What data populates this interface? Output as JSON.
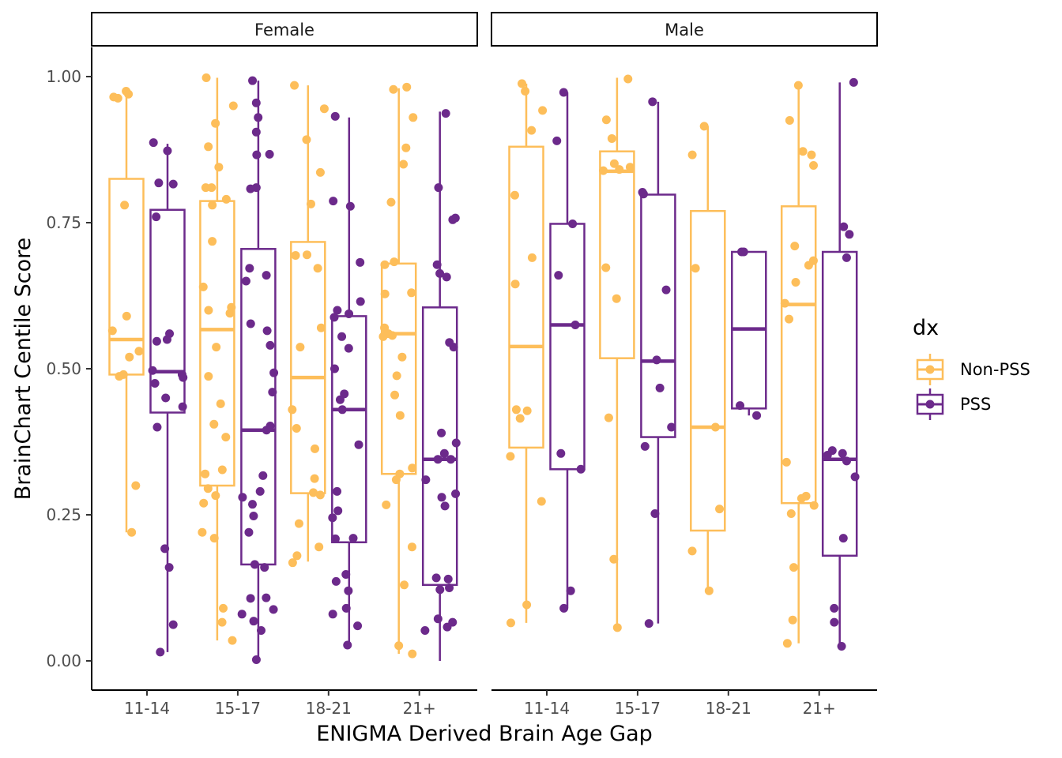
{
  "chart_data": {
    "type": "boxplot",
    "xlabel": "ENIGMA Derived Brain Age Gap",
    "ylabel": "BrainChart Centile Score",
    "ylim": [
      -0.05,
      1.05
    ],
    "yticks": [
      "0.00",
      "0.25",
      "0.50",
      "0.75",
      "1.00"
    ],
    "ytick_values": [
      0,
      0.25,
      0.5,
      0.75,
      1.0
    ],
    "categories": [
      "11-14",
      "15-17",
      "18-21",
      "21+"
    ],
    "legend": {
      "title": "dx",
      "position": "right",
      "entries": [
        {
          "label": "Non-PSS",
          "color": "#FDBE5A"
        },
        {
          "label": "PSS",
          "color": "#6C2A8B"
        }
      ]
    },
    "facets": [
      {
        "label": "Female",
        "groups": [
          {
            "category": "11-14",
            "dx": "Non-PSS",
            "box": {
              "min": 0.22,
              "q1": 0.49,
              "median": 0.55,
              "q3": 0.825,
              "max": 0.975
            },
            "points": [
              0.975,
              0.97,
              0.965,
              0.963,
              0.78,
              0.59,
              0.565,
              0.53,
              0.52,
              0.49,
              0.487,
              0.3,
              0.22
            ]
          },
          {
            "category": "11-14",
            "dx": "PSS",
            "box": {
              "min": 0.015,
              "q1": 0.425,
              "median": 0.495,
              "q3": 0.772,
              "max": 0.885
            },
            "points": [
              0.887,
              0.873,
              0.818,
              0.816,
              0.76,
              0.56,
              0.55,
              0.547,
              0.497,
              0.49,
              0.485,
              0.475,
              0.45,
              0.435,
              0.4,
              0.192,
              0.16,
              0.062,
              0.015
            ]
          },
          {
            "category": "15-17",
            "dx": "Non-PSS",
            "box": {
              "min": 0.035,
              "q1": 0.3,
              "median": 0.567,
              "q3": 0.787,
              "max": 0.998
            },
            "points": [
              0.998,
              0.95,
              0.92,
              0.88,
              0.845,
              0.81,
              0.81,
              0.79,
              0.78,
              0.718,
              0.64,
              0.605,
              0.6,
              0.595,
              0.537,
              0.487,
              0.44,
              0.405,
              0.383,
              0.327,
              0.32,
              0.295,
              0.283,
              0.27,
              0.22,
              0.21,
              0.09,
              0.066,
              0.035
            ]
          },
          {
            "category": "15-17",
            "dx": "PSS",
            "box": {
              "min": 0.002,
              "q1": 0.165,
              "median": 0.395,
              "q3": 0.705,
              "max": 0.993
            },
            "points": [
              0.993,
              0.955,
              0.93,
              0.905,
              0.867,
              0.866,
              0.81,
              0.808,
              0.672,
              0.66,
              0.65,
              0.577,
              0.565,
              0.54,
              0.493,
              0.46,
              0.402,
              0.395,
              0.317,
              0.29,
              0.28,
              0.268,
              0.248,
              0.22,
              0.165,
              0.16,
              0.108,
              0.107,
              0.088,
              0.08,
              0.068,
              0.052,
              0.002
            ]
          },
          {
            "category": "18-21",
            "dx": "Non-PSS",
            "box": {
              "min": 0.17,
              "q1": 0.287,
              "median": 0.485,
              "q3": 0.717,
              "max": 0.985
            },
            "points": [
              0.985,
              0.945,
              0.892,
              0.836,
              0.782,
              0.695,
              0.694,
              0.672,
              0.57,
              0.537,
              0.43,
              0.398,
              0.363,
              0.312,
              0.288,
              0.284,
              0.235,
              0.195,
              0.18,
              0.168
            ]
          },
          {
            "category": "18-21",
            "dx": "PSS",
            "box": {
              "min": 0.027,
              "q1": 0.203,
              "median": 0.43,
              "q3": 0.59,
              "max": 0.93
            },
            "points": [
              0.932,
              0.787,
              0.778,
              0.682,
              0.615,
              0.6,
              0.594,
              0.588,
              0.555,
              0.535,
              0.5,
              0.457,
              0.447,
              0.43,
              0.37,
              0.29,
              0.257,
              0.245,
              0.21,
              0.209,
              0.148,
              0.136,
              0.12,
              0.09,
              0.08,
              0.06,
              0.027
            ]
          },
          {
            "category": "21+",
            "dx": "Non-PSS",
            "box": {
              "min": 0.012,
              "q1": 0.32,
              "median": 0.56,
              "q3": 0.68,
              "max": 0.98
            },
            "points": [
              0.982,
              0.978,
              0.93,
              0.878,
              0.85,
              0.785,
              0.683,
              0.678,
              0.63,
              0.628,
              0.57,
              0.56,
              0.557,
              0.555,
              0.52,
              0.488,
              0.455,
              0.42,
              0.33,
              0.32,
              0.31,
              0.267,
              0.195,
              0.13,
              0.026,
              0.012
            ]
          },
          {
            "category": "21+",
            "dx": "PSS",
            "box": {
              "min": 0.0,
              "q1": 0.13,
              "median": 0.345,
              "q3": 0.605,
              "max": 0.94
            },
            "points": [
              0.937,
              0.81,
              0.758,
              0.755,
              0.678,
              0.663,
              0.657,
              0.545,
              0.537,
              0.39,
              0.373,
              0.355,
              0.345,
              0.345,
              0.31,
              0.286,
              0.28,
              0.265,
              0.142,
              0.14,
              0.125,
              0.122,
              0.072,
              0.066,
              0.058,
              0.052
            ]
          }
        ]
      },
      {
        "label": "Male",
        "groups": [
          {
            "category": "11-14",
            "dx": "Non-PSS",
            "box": {
              "min": 0.065,
              "q1": 0.365,
              "median": 0.538,
              "q3": 0.88,
              "max": 0.988
            },
            "points": [
              0.988,
              0.975,
              0.942,
              0.908,
              0.797,
              0.69,
              0.645,
              0.43,
              0.428,
              0.415,
              0.35,
              0.273,
              0.096,
              0.065
            ]
          },
          {
            "category": "11-14",
            "dx": "PSS",
            "box": {
              "min": 0.09,
              "q1": 0.328,
              "median": 0.575,
              "q3": 0.748,
              "max": 0.973
            },
            "points": [
              0.973,
              0.89,
              0.748,
              0.66,
              0.575,
              0.355,
              0.328,
              0.12,
              0.09
            ]
          },
          {
            "category": "15-17",
            "dx": "Non-PSS",
            "box": {
              "min": 0.057,
              "q1": 0.518,
              "median": 0.838,
              "q3": 0.872,
              "max": 0.998
            },
            "points": [
              0.996,
              0.926,
              0.894,
              0.851,
              0.845,
              0.841,
              0.839,
              0.673,
              0.62,
              0.416,
              0.174,
              0.057
            ]
          },
          {
            "category": "15-17",
            "dx": "PSS",
            "box": {
              "min": 0.064,
              "q1": 0.383,
              "median": 0.513,
              "q3": 0.798,
              "max": 0.957
            },
            "points": [
              0.957,
              0.802,
              0.799,
              0.635,
              0.515,
              0.467,
              0.4,
              0.367,
              0.252,
              0.064
            ]
          },
          {
            "category": "18-21",
            "dx": "Non-PSS",
            "box": {
              "min": 0.12,
              "q1": 0.223,
              "median": 0.4,
              "q3": 0.77,
              "max": 0.915
            },
            "points": [
              0.915,
              0.866,
              0.672,
              0.4,
              0.26,
              0.188,
              0.12
            ]
          },
          {
            "category": "18-21",
            "dx": "PSS",
            "box": {
              "min": 0.42,
              "q1": 0.432,
              "median": 0.568,
              "q3": 0.7,
              "max": 0.7
            },
            "points": [
              0.7,
              0.7,
              0.437,
              0.42
            ]
          },
          {
            "category": "21+",
            "dx": "Non-PSS",
            "box": {
              "min": 0.03,
              "q1": 0.27,
              "median": 0.61,
              "q3": 0.778,
              "max": 0.985
            },
            "points": [
              0.985,
              0.925,
              0.872,
              0.866,
              0.848,
              0.71,
              0.685,
              0.677,
              0.648,
              0.612,
              0.585,
              0.34,
              0.282,
              0.278,
              0.266,
              0.252,
              0.16,
              0.07,
              0.03
            ]
          },
          {
            "category": "21+",
            "dx": "PSS",
            "box": {
              "min": 0.025,
              "q1": 0.18,
              "median": 0.345,
              "q3": 0.7,
              "max": 0.99
            },
            "points": [
              0.99,
              0.743,
              0.73,
              0.69,
              0.36,
              0.355,
              0.352,
              0.342,
              0.315,
              0.21,
              0.09,
              0.066,
              0.025
            ]
          }
        ]
      }
    ]
  }
}
